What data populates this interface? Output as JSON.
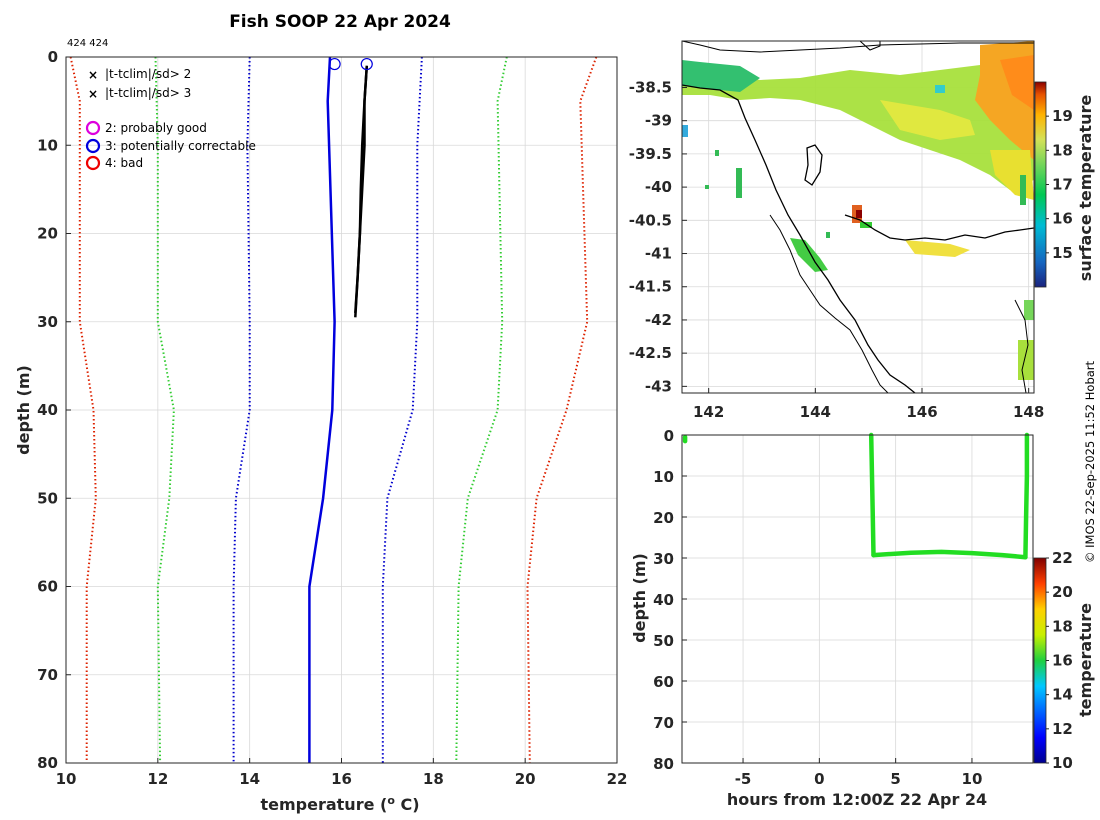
{
  "chart_data": [
    {
      "type": "line",
      "id": "profile",
      "title": "Fish SOOP 22 Apr 2024",
      "id_label": "424 424",
      "xlabel": "temperature (",
      "xlabel_sup": "o",
      "xlabel_end": " C)",
      "ylabel": "depth (m)",
      "xlim": [
        10,
        22
      ],
      "ylim": [
        0,
        80
      ],
      "y_reversed": true,
      "xticks": [
        10,
        12,
        14,
        16,
        18,
        20,
        22
      ],
      "yticks": [
        0,
        10,
        20,
        30,
        40,
        50,
        60,
        70,
        80
      ],
      "grid": true,
      "legend_position": "top-left",
      "legend": [
        {
          "label": "|t-tclim|/sd> 2",
          "marker": "x",
          "color": "#00dd00"
        },
        {
          "label": "|t-tclim|/sd> 3",
          "marker": "x",
          "color": "#dd0000"
        },
        {
          "label": "2: probably good",
          "marker": "circle",
          "color": "#dd00dd"
        },
        {
          "label": "3: potentially correctable",
          "marker": "circle",
          "color": "#0000dd"
        },
        {
          "label": "4: bad",
          "marker": "circle",
          "color": "#ee0000"
        }
      ],
      "series": [
        {
          "name": "climatology -3sd",
          "color": "#dd2200",
          "style": "dotted",
          "points": [
            [
              10.1,
              0
            ],
            [
              10.3,
              5
            ],
            [
              10.3,
              30
            ],
            [
              10.6,
              40
            ],
            [
              10.65,
              50
            ],
            [
              10.45,
              60
            ],
            [
              10.45,
              80
            ]
          ]
        },
        {
          "name": "climatology -2sd",
          "color": "#33cc33",
          "style": "dotted",
          "points": [
            [
              11.95,
              0
            ],
            [
              12.0,
              10
            ],
            [
              12.0,
              30
            ],
            [
              12.35,
              40
            ],
            [
              12.25,
              50
            ],
            [
              12.0,
              60
            ],
            [
              12.05,
              80
            ]
          ]
        },
        {
          "name": "climatology -1sd",
          "color": "#0000cc",
          "style": "dotted",
          "points": [
            [
              14.0,
              0
            ],
            [
              13.95,
              10
            ],
            [
              14.0,
              30
            ],
            [
              14.0,
              40
            ],
            [
              13.7,
              50
            ],
            [
              13.65,
              60
            ],
            [
              13.65,
              80
            ]
          ]
        },
        {
          "name": "climatology mean",
          "color": "#0000dd",
          "style": "solid",
          "points": [
            [
              15.75,
              0
            ],
            [
              15.7,
              5
            ],
            [
              15.85,
              30
            ],
            [
              15.8,
              40
            ],
            [
              15.6,
              50
            ],
            [
              15.3,
              60
            ],
            [
              15.3,
              80
            ]
          ]
        },
        {
          "name": "climatology +1sd",
          "color": "#0000cc",
          "style": "dotted",
          "points": [
            [
              17.75,
              0
            ],
            [
              17.65,
              10
            ],
            [
              17.65,
              30
            ],
            [
              17.55,
              40
            ],
            [
              17.0,
              50
            ],
            [
              16.9,
              60
            ],
            [
              16.9,
              80
            ]
          ]
        },
        {
          "name": "climatology +2sd",
          "color": "#33cc33",
          "style": "dotted",
          "points": [
            [
              19.6,
              0
            ],
            [
              19.4,
              5
            ],
            [
              19.5,
              30
            ],
            [
              19.4,
              40
            ],
            [
              18.75,
              50
            ],
            [
              18.55,
              60
            ],
            [
              18.5,
              80
            ]
          ]
        },
        {
          "name": "climatology +3sd",
          "color": "#dd2200",
          "style": "dotted",
          "points": [
            [
              21.55,
              0
            ],
            [
              21.2,
              5
            ],
            [
              21.35,
              30
            ],
            [
              20.9,
              40
            ],
            [
              20.25,
              50
            ],
            [
              20.05,
              60
            ],
            [
              20.1,
              80
            ]
          ]
        },
        {
          "name": "profile descent",
          "color": "#000000",
          "style": "solid",
          "points": [
            [
              16.55,
              1
            ],
            [
              16.5,
              5
            ],
            [
              16.5,
              10
            ],
            [
              16.45,
              15
            ],
            [
              16.4,
              20
            ],
            [
              16.35,
              25
            ],
            [
              16.3,
              29
            ]
          ]
        },
        {
          "name": "profile ascent",
          "color": "#000000",
          "style": "solid",
          "points": [
            [
              16.3,
              29.5
            ],
            [
              16.35,
              25
            ],
            [
              16.4,
              20
            ],
            [
              16.42,
              15
            ],
            [
              16.45,
              10
            ],
            [
              16.5,
              5
            ],
            [
              16.55,
              1
            ]
          ]
        }
      ],
      "flag_markers": [
        {
          "x": 15.85,
          "y": 0.8,
          "color": "#0000dd"
        },
        {
          "x": 16.55,
          "y": 0.8,
          "color": "#0000dd"
        }
      ]
    },
    {
      "type": "heatmap",
      "id": "sst_map",
      "colorbar_label": "surface temperature",
      "xlim": [
        141.5,
        148.1
      ],
      "ylim": [
        -43.1,
        -37.8
      ],
      "xticks": [
        142,
        144,
        146,
        148
      ],
      "yticks": [
        -38.5,
        -39,
        -39.5,
        -40,
        -40.5,
        -41,
        -41.5,
        -42,
        -42.5,
        -43
      ],
      "ytick_labels": [
        "-38.5",
        "-39",
        "-39.5",
        "-40",
        "-40.5",
        "-41",
        "-41.5",
        "-42",
        "-42.5",
        "-43"
      ],
      "colorbar_range": [
        14,
        20
      ],
      "colorbar_ticks": [
        15,
        16,
        17,
        18,
        19
      ]
    },
    {
      "type": "scatter",
      "id": "time_depth",
      "xlabel": "hours from 12:00Z 22 Apr 24",
      "ylabel": "depth (m)",
      "colorbar_label": "temperature",
      "xlim": [
        -9,
        14
      ],
      "ylim": [
        0,
        80
      ],
      "y_reversed": true,
      "xticks": [
        -5,
        0,
        5,
        10
      ],
      "yticks": [
        0,
        10,
        20,
        30,
        40,
        50,
        60,
        70,
        80
      ],
      "colorbar_range": [
        10,
        22
      ],
      "colorbar_ticks": [
        10,
        12,
        14,
        16,
        18,
        20,
        22
      ],
      "point_color": "#22dd22",
      "segments": [
        [
          [
            -8.8,
            0.5
          ],
          [
            -8.8,
            1.5
          ]
        ],
        [
          [
            3.4,
            0
          ],
          [
            3.45,
            10
          ],
          [
            3.5,
            20
          ],
          [
            3.55,
            29.3
          ]
        ],
        [
          [
            3.55,
            29.3
          ],
          [
            6,
            28.7
          ],
          [
            8,
            28.5
          ],
          [
            10,
            28.8
          ],
          [
            12,
            29.3
          ],
          [
            13.5,
            29.8
          ]
        ],
        [
          [
            13.5,
            29.8
          ],
          [
            13.55,
            20
          ],
          [
            13.6,
            10
          ],
          [
            13.6,
            0
          ]
        ]
      ]
    }
  ],
  "credit": "© IMOS 22-Sep-2025 11:52 Hobart"
}
